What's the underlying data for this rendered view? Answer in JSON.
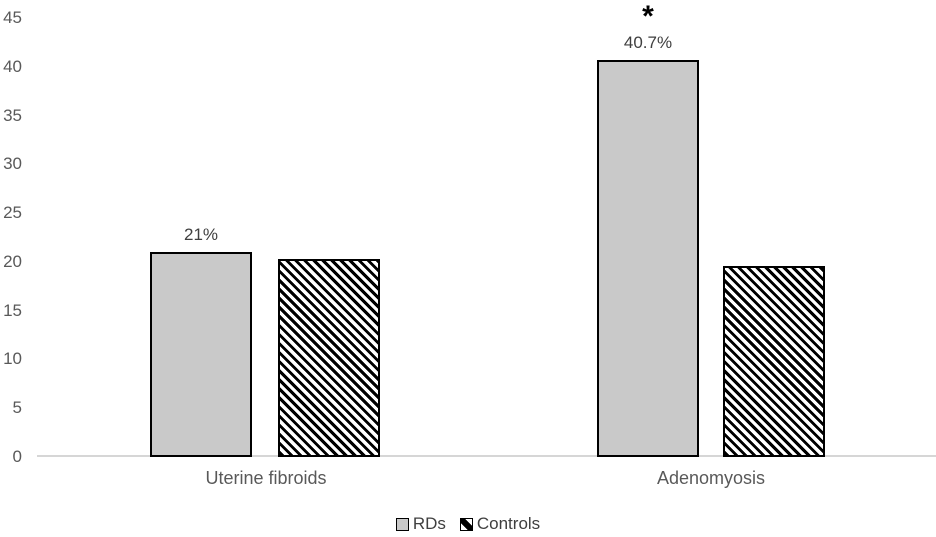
{
  "chart_data": {
    "type": "bar",
    "title": "",
    "xlabel": "",
    "ylabel": "",
    "categories": [
      "Uterine fibroids",
      "Adenomyosis"
    ],
    "series": [
      {
        "name": "RDs",
        "pattern": "solid",
        "fill": "#c9c9c9",
        "values": [
          21,
          40.7
        ],
        "labels": [
          "21%",
          "40.7%"
        ]
      },
      {
        "name": "Controls",
        "pattern": "diagonal-hatch",
        "fill": "#ffffff",
        "values": [
          20.3,
          19.6
        ]
      }
    ],
    "annotations": [
      {
        "text": "*",
        "series_index": 0,
        "category_index": 1
      }
    ],
    "ylim": [
      0,
      45
    ],
    "yticks": [
      0,
      5,
      10,
      15,
      20,
      25,
      30,
      35,
      40,
      45
    ],
    "grid": false,
    "legend_position": "bottom"
  },
  "colors": {
    "bar_fill_rds": "#c9c9c9",
    "bar_border": "#000000",
    "hatch_color": "#000000",
    "axis_line": "#d6d6d6",
    "tick_label": "#595959",
    "category_label": "#595959",
    "data_label": "#3f3f3f"
  }
}
